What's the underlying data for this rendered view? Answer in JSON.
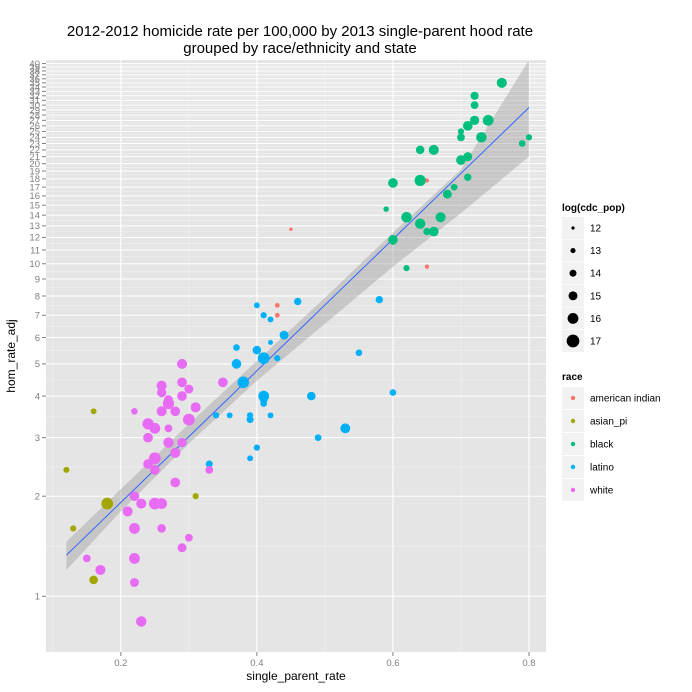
{
  "chart_data": {
    "type": "scatter",
    "title_line1": "2012-2012 homicide rate per 100,000 by 2013 single-parent hood rate",
    "title_line2": "grouped by race/ethnicity and state",
    "xlabel": "single_parent_rate",
    "ylabel": "hom_rate_adj",
    "x_scale": "linear",
    "y_scale": "log",
    "xlim": [
      0.09,
      0.825
    ],
    "ylim": [
      0.68,
      41
    ],
    "x_ticks": [
      0.2,
      0.4,
      0.6,
      0.8
    ],
    "x_tick_labels": [
      "0.2",
      "0.4",
      "0.6",
      "0.8"
    ],
    "y_ticks": [
      1,
      2,
      3,
      4,
      5,
      6,
      7,
      8,
      9,
      10,
      11,
      12,
      13,
      14,
      15,
      16,
      17,
      18,
      19,
      20,
      21,
      22,
      23,
      24,
      25,
      26,
      27,
      28,
      29,
      30,
      31,
      32,
      33,
      34,
      35,
      36,
      37,
      38,
      39,
      40
    ],
    "y_tick_labels": [
      "1",
      "2",
      "3",
      "4",
      "5",
      "6",
      "7",
      "8",
      "9",
      "10",
      "11",
      "12",
      "13",
      "14",
      "15",
      "16",
      "17",
      "18",
      "19",
      "20",
      "21",
      "22",
      "23",
      "24",
      "25",
      "26",
      "27",
      "28",
      "29",
      "30",
      "31",
      "32",
      "33",
      "34",
      "35",
      "36",
      "37",
      "38",
      "39",
      "40"
    ],
    "fit_line": {
      "x": [
        0.12,
        0.8
      ],
      "y": [
        1.33,
        29.5
      ]
    },
    "fit_band": {
      "x": [
        0.12,
        0.2,
        0.3,
        0.4,
        0.5,
        0.6,
        0.7,
        0.8
      ],
      "lower": [
        1.2,
        1.8,
        2.88,
        4.45,
        6.6,
        9.8,
        14.2,
        21.0
      ],
      "upper": [
        1.46,
        2.1,
        3.3,
        5.1,
        7.9,
        12.4,
        19.2,
        41.0
      ]
    },
    "size_legend": {
      "title": "log(cdc_pop)",
      "values": [
        12,
        13,
        14,
        15,
        16,
        17
      ],
      "labels": [
        "12",
        "13",
        "14",
        "15",
        "16",
        "17"
      ]
    },
    "color_legend": {
      "title": "race",
      "entries": [
        {
          "key": "american_indian",
          "label": "american indian",
          "color": "#F8766D"
        },
        {
          "key": "asian_pi",
          "label": "asian_pi",
          "color": "#A3A500"
        },
        {
          "key": "black",
          "label": "black",
          "color": "#00BF7D"
        },
        {
          "key": "latino",
          "label": "latino",
          "color": "#00B0F6"
        },
        {
          "key": "white",
          "label": "white",
          "color": "#E76BF3"
        }
      ]
    },
    "series": [
      {
        "name": "american indian",
        "color": "#F8766D",
        "points": [
          [
            0.43,
            7.5,
            12.8
          ],
          [
            0.43,
            7.0,
            12.8
          ],
          [
            0.45,
            12.7,
            12.2
          ],
          [
            0.65,
            17.8,
            12.5
          ],
          [
            0.65,
            9.8,
            12.6
          ]
        ]
      },
      {
        "name": "asian_pi",
        "color": "#A3A500",
        "points": [
          [
            0.12,
            2.4,
            13.5
          ],
          [
            0.13,
            1.6,
            13.5
          ],
          [
            0.16,
            3.6,
            13.4
          ],
          [
            0.16,
            1.12,
            14.8
          ],
          [
            0.18,
            1.9,
            16.5
          ],
          [
            0.31,
            2.0,
            13.6
          ]
        ]
      },
      {
        "name": "black",
        "color": "#00BF7D",
        "points": [
          [
            0.6,
            17.5,
            15.4
          ],
          [
            0.59,
            14.6,
            13.2
          ],
          [
            0.6,
            11.8,
            15.4
          ],
          [
            0.62,
            13.8,
            15.9
          ],
          [
            0.62,
            9.7,
            13.6
          ],
          [
            0.64,
            22.0,
            14.8
          ],
          [
            0.64,
            13.2,
            15.8
          ],
          [
            0.64,
            17.8,
            16.2
          ],
          [
            0.65,
            12.5,
            14.2
          ],
          [
            0.66,
            12.5,
            15.4
          ],
          [
            0.66,
            22.0,
            15.6
          ],
          [
            0.67,
            13.8,
            15.6
          ],
          [
            0.68,
            16.2,
            15.0
          ],
          [
            0.69,
            17.0,
            13.8
          ],
          [
            0.7,
            20.5,
            15.4
          ],
          [
            0.7,
            24.0,
            14.4
          ],
          [
            0.7,
            25.0,
            13.6
          ],
          [
            0.71,
            21.0,
            15.0
          ],
          [
            0.71,
            18.2,
            14.2
          ],
          [
            0.71,
            26.0,
            15.4
          ],
          [
            0.72,
            27.0,
            15.2
          ],
          [
            0.72,
            30.0,
            14.4
          ],
          [
            0.72,
            32.0,
            14.6
          ],
          [
            0.73,
            24.0,
            15.8
          ],
          [
            0.74,
            27.0,
            16.0
          ],
          [
            0.76,
            35.0,
            15.6
          ],
          [
            0.79,
            23.0,
            13.8
          ],
          [
            0.8,
            24.0,
            13.6
          ]
        ]
      },
      {
        "name": "latino",
        "color": "#00B0F6",
        "points": [
          [
            0.33,
            2.5,
            14.0
          ],
          [
            0.34,
            3.5,
            13.6
          ],
          [
            0.36,
            3.5,
            13.4
          ],
          [
            0.37,
            5.6,
            13.8
          ],
          [
            0.37,
            5.0,
            15.4
          ],
          [
            0.39,
            2.6,
            13.4
          ],
          [
            0.39,
            3.4,
            14.0
          ],
          [
            0.39,
            3.5,
            13.6
          ],
          [
            0.4,
            2.8,
            13.6
          ],
          [
            0.4,
            7.5,
            13.4
          ],
          [
            0.4,
            5.5,
            14.8
          ],
          [
            0.41,
            7.0,
            13.6
          ],
          [
            0.41,
            5.2,
            16.5
          ],
          [
            0.41,
            4.0,
            16.0
          ],
          [
            0.41,
            3.9,
            14.4
          ],
          [
            0.41,
            3.8,
            13.8
          ],
          [
            0.42,
            6.8,
            13.4
          ],
          [
            0.42,
            5.8,
            12.9
          ],
          [
            0.42,
            3.5,
            13.4
          ],
          [
            0.43,
            5.2,
            13.6
          ],
          [
            0.44,
            6.1,
            15.0
          ],
          [
            0.46,
            7.7,
            14.2
          ],
          [
            0.48,
            4.0,
            14.8
          ],
          [
            0.49,
            3.0,
            13.8
          ],
          [
            0.53,
            3.2,
            15.5
          ],
          [
            0.55,
            5.4,
            13.8
          ],
          [
            0.58,
            7.8,
            14.2
          ],
          [
            0.6,
            4.1,
            13.8
          ],
          [
            0.38,
            4.4,
            16.4
          ]
        ]
      },
      {
        "name": "white",
        "color": "#E76BF3",
        "points": [
          [
            0.15,
            1.3,
            14.4
          ],
          [
            0.17,
            1.2,
            15.6
          ],
          [
            0.21,
            1.8,
            15.6
          ],
          [
            0.22,
            1.3,
            16.0
          ],
          [
            0.22,
            1.6,
            16.0
          ],
          [
            0.22,
            1.1,
            15.0
          ],
          [
            0.22,
            3.6,
            13.8
          ],
          [
            0.22,
            2.0,
            15.4
          ],
          [
            0.23,
            0.84,
            15.8
          ],
          [
            0.23,
            1.9,
            15.6
          ],
          [
            0.24,
            2.5,
            15.4
          ],
          [
            0.24,
            3.0,
            15.4
          ],
          [
            0.24,
            3.3,
            16.2
          ],
          [
            0.25,
            2.4,
            15.4
          ],
          [
            0.25,
            2.6,
            16.5
          ],
          [
            0.25,
            3.2,
            16.0
          ],
          [
            0.25,
            1.9,
            16.5
          ],
          [
            0.26,
            3.6,
            15.6
          ],
          [
            0.26,
            4.3,
            15.6
          ],
          [
            0.26,
            4.1,
            15.2
          ],
          [
            0.26,
            1.6,
            14.8
          ],
          [
            0.26,
            1.9,
            16.0
          ],
          [
            0.27,
            2.9,
            15.8
          ],
          [
            0.27,
            3.2,
            14.4
          ],
          [
            0.27,
            3.8,
            16.2
          ],
          [
            0.27,
            3.9,
            15.0
          ],
          [
            0.28,
            2.7,
            15.6
          ],
          [
            0.28,
            3.6,
            15.4
          ],
          [
            0.28,
            2.2,
            15.4
          ],
          [
            0.29,
            5.0,
            15.6
          ],
          [
            0.29,
            4.4,
            15.4
          ],
          [
            0.29,
            4.0,
            15.4
          ],
          [
            0.29,
            2.9,
            15.2
          ],
          [
            0.29,
            1.4,
            15.0
          ],
          [
            0.3,
            3.4,
            16.5
          ],
          [
            0.3,
            4.2,
            15.0
          ],
          [
            0.3,
            1.5,
            14.4
          ],
          [
            0.31,
            3.7,
            15.6
          ],
          [
            0.33,
            2.4,
            14.4
          ],
          [
            0.35,
            4.4,
            15.4
          ]
        ]
      }
    ]
  }
}
